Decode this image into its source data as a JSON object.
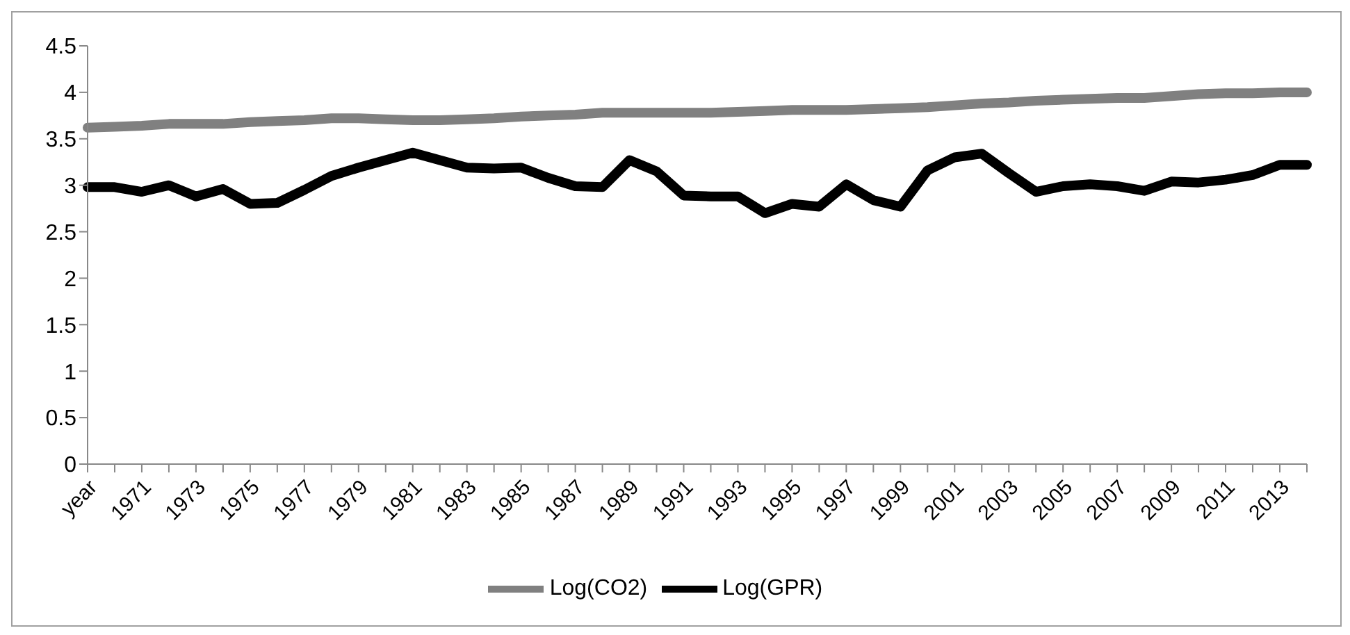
{
  "chart_data": {
    "type": "line",
    "categories": [
      "year",
      null,
      "1971",
      null,
      "1973",
      null,
      "1975",
      null,
      "1977",
      null,
      "1979",
      null,
      "1981",
      null,
      "1983",
      null,
      "1985",
      null,
      "1987",
      null,
      "1989",
      null,
      "1991",
      null,
      "1993",
      null,
      "1995",
      null,
      "1997",
      null,
      "1999",
      null,
      "2001",
      null,
      "2003",
      null,
      "2005",
      null,
      "2007",
      null,
      "2009",
      null,
      "2011",
      null,
      "2013",
      null
    ],
    "series": [
      {
        "name": "Log(GPR)",
        "color": "#000000",
        "values": [
          2.98,
          2.98,
          2.93,
          3.0,
          2.88,
          2.96,
          2.8,
          2.81,
          2.95,
          3.1,
          3.19,
          3.27,
          3.35,
          3.27,
          3.19,
          3.18,
          3.19,
          3.08,
          2.99,
          2.98,
          3.27,
          3.15,
          2.89,
          2.88,
          2.88,
          2.7,
          2.8,
          2.77,
          3.01,
          2.84,
          2.77,
          3.16,
          3.3,
          3.34,
          3.13,
          2.93,
          2.99,
          3.01,
          2.99,
          2.94,
          3.04,
          3.03,
          3.06,
          3.11,
          3.22,
          3.22
        ]
      },
      {
        "name": "Log(CO2)",
        "color": "#808080",
        "values": [
          3.62,
          3.63,
          3.64,
          3.66,
          3.66,
          3.66,
          3.68,
          3.69,
          3.7,
          3.72,
          3.72,
          3.71,
          3.7,
          3.7,
          3.71,
          3.72,
          3.74,
          3.75,
          3.76,
          3.78,
          3.78,
          3.78,
          3.78,
          3.78,
          3.79,
          3.8,
          3.81,
          3.81,
          3.81,
          3.82,
          3.83,
          3.84,
          3.86,
          3.88,
          3.89,
          3.91,
          3.92,
          3.93,
          3.94,
          3.94,
          3.96,
          3.98,
          3.99,
          3.99,
          4.0,
          4.0
        ]
      }
    ],
    "ylim": [
      0,
      4.5
    ],
    "yticks": [
      0,
      0.5,
      1,
      1.5,
      2,
      2.5,
      3,
      3.5,
      4,
      4.5
    ],
    "grid": false,
    "legend": "bottom",
    "marker": "none",
    "line_style": "solid"
  }
}
